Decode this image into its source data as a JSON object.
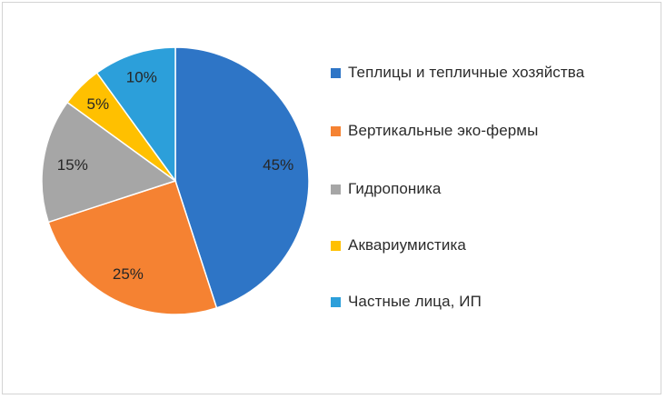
{
  "chart_data": {
    "type": "pie",
    "title": "",
    "categories": [
      "Теплицы и тепличные хозяйства",
      "Вертикальные эко-фермы",
      "Гидропоника",
      "Аквариумистика",
      "Частные лица, ИП"
    ],
    "values": [
      45,
      25,
      15,
      5,
      10
    ],
    "data_labels": [
      "45%",
      "25%",
      "15%",
      "5%",
      "10%"
    ],
    "colors": [
      "#2E75C6",
      "#F58232",
      "#A6A6A6",
      "#FFC000",
      "#2C9FDA"
    ],
    "start_angle_deg": 0,
    "direction": "clockwise",
    "legend_position": "right"
  }
}
